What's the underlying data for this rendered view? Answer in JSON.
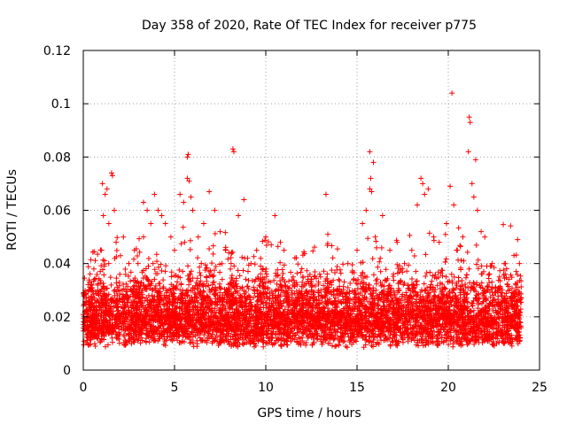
{
  "chart_data": {
    "type": "scatter",
    "title": "Day 358 of 2020, Rate Of TEC Index for receiver p775",
    "xlabel": "GPS time / hours",
    "ylabel": "ROTI / TECUs",
    "xlim": [
      0,
      25
    ],
    "ylim": [
      0,
      0.12
    ],
    "xticks": [
      0,
      5,
      10,
      15,
      20,
      25
    ],
    "xtick_labels": [
      "0",
      "5",
      "10",
      "15",
      "20",
      "25"
    ],
    "yticks": [
      0,
      0.02,
      0.04,
      0.06,
      0.08,
      0.1,
      0.12
    ],
    "ytick_labels": [
      "0",
      "0.02",
      "0.04",
      "0.06",
      "0.08",
      "0.1",
      "0.12"
    ],
    "grid": true,
    "marker": "+",
    "color": "#ff0000",
    "x_range_of_data": [
      0,
      24
    ],
    "bulk_band": [
      0.005,
      0.03
    ],
    "series": [
      {
        "name": "ROTI",
        "points": [
          [
            0.1,
            0.015
          ],
          [
            0.3,
            0.022
          ],
          [
            0.5,
            0.02
          ],
          [
            0.8,
            0.03
          ],
          [
            1.0,
            0.045
          ],
          [
            1.05,
            0.07
          ],
          [
            1.2,
            0.066
          ],
          [
            1.3,
            0.068
          ],
          [
            1.1,
            0.058
          ],
          [
            1.4,
            0.055
          ],
          [
            1.55,
            0.074
          ],
          [
            1.6,
            0.073
          ],
          [
            1.7,
            0.06
          ],
          [
            1.8,
            0.048
          ],
          [
            2.0,
            0.036
          ],
          [
            2.2,
            0.05
          ],
          [
            2.5,
            0.04
          ],
          [
            2.8,
            0.045
          ],
          [
            3.0,
            0.04
          ],
          [
            3.3,
            0.05
          ],
          [
            3.3,
            0.063
          ],
          [
            3.5,
            0.06
          ],
          [
            3.7,
            0.055
          ],
          [
            3.9,
            0.066
          ],
          [
            4.1,
            0.06
          ],
          [
            4.3,
            0.058
          ],
          [
            4.5,
            0.055
          ],
          [
            4.8,
            0.05
          ],
          [
            5.0,
            0.045
          ],
          [
            5.3,
            0.066
          ],
          [
            5.5,
            0.063
          ],
          [
            5.7,
            0.08
          ],
          [
            5.75,
            0.081
          ],
          [
            5.8,
            0.071
          ],
          [
            5.7,
            0.072
          ],
          [
            5.9,
            0.065
          ],
          [
            6.0,
            0.06
          ],
          [
            6.3,
            0.05
          ],
          [
            6.6,
            0.055
          ],
          [
            6.9,
            0.067
          ],
          [
            7.2,
            0.06
          ],
          [
            7.5,
            0.052
          ],
          [
            7.8,
            0.045
          ],
          [
            8.1,
            0.04
          ],
          [
            8.2,
            0.083
          ],
          [
            8.25,
            0.082
          ],
          [
            8.5,
            0.058
          ],
          [
            8.8,
            0.064
          ],
          [
            9.0,
            0.042
          ],
          [
            9.5,
            0.045
          ],
          [
            10.0,
            0.05
          ],
          [
            10.3,
            0.047
          ],
          [
            10.5,
            0.058
          ],
          [
            10.8,
            0.048
          ],
          [
            11.0,
            0.045
          ],
          [
            11.5,
            0.035
          ],
          [
            12.0,
            0.033
          ],
          [
            12.5,
            0.03
          ],
          [
            13.0,
            0.035
          ],
          [
            13.3,
            0.066
          ],
          [
            13.4,
            0.051
          ],
          [
            13.6,
            0.032
          ],
          [
            14.0,
            0.034
          ],
          [
            14.5,
            0.04
          ],
          [
            15.0,
            0.045
          ],
          [
            15.3,
            0.055
          ],
          [
            15.5,
            0.06
          ],
          [
            15.7,
            0.082
          ],
          [
            15.75,
            0.072
          ],
          [
            15.7,
            0.068
          ],
          [
            15.8,
            0.067
          ],
          [
            15.9,
            0.078
          ],
          [
            16.0,
            0.05
          ],
          [
            16.4,
            0.058
          ],
          [
            16.8,
            0.045
          ],
          [
            17.2,
            0.048
          ],
          [
            17.6,
            0.04
          ],
          [
            18.0,
            0.045
          ],
          [
            18.3,
            0.062
          ],
          [
            18.5,
            0.072
          ],
          [
            18.6,
            0.07
          ],
          [
            18.7,
            0.066
          ],
          [
            18.9,
            0.068
          ],
          [
            19.2,
            0.05
          ],
          [
            19.5,
            0.048
          ],
          [
            19.9,
            0.055
          ],
          [
            20.1,
            0.069
          ],
          [
            20.2,
            0.104
          ],
          [
            20.3,
            0.062
          ],
          [
            20.5,
            0.045
          ],
          [
            20.8,
            0.05
          ],
          [
            21.1,
            0.082
          ],
          [
            21.15,
            0.095
          ],
          [
            21.2,
            0.093
          ],
          [
            21.3,
            0.07
          ],
          [
            21.4,
            0.065
          ],
          [
            21.5,
            0.079
          ],
          [
            21.6,
            0.06
          ],
          [
            21.8,
            0.052
          ],
          [
            22.0,
            0.05
          ],
          [
            22.4,
            0.04
          ],
          [
            22.8,
            0.035
          ],
          [
            23.2,
            0.038
          ],
          [
            23.6,
            0.043
          ],
          [
            23.8,
            0.049
          ],
          [
            23.9,
            0.04
          ]
        ]
      }
    ]
  }
}
